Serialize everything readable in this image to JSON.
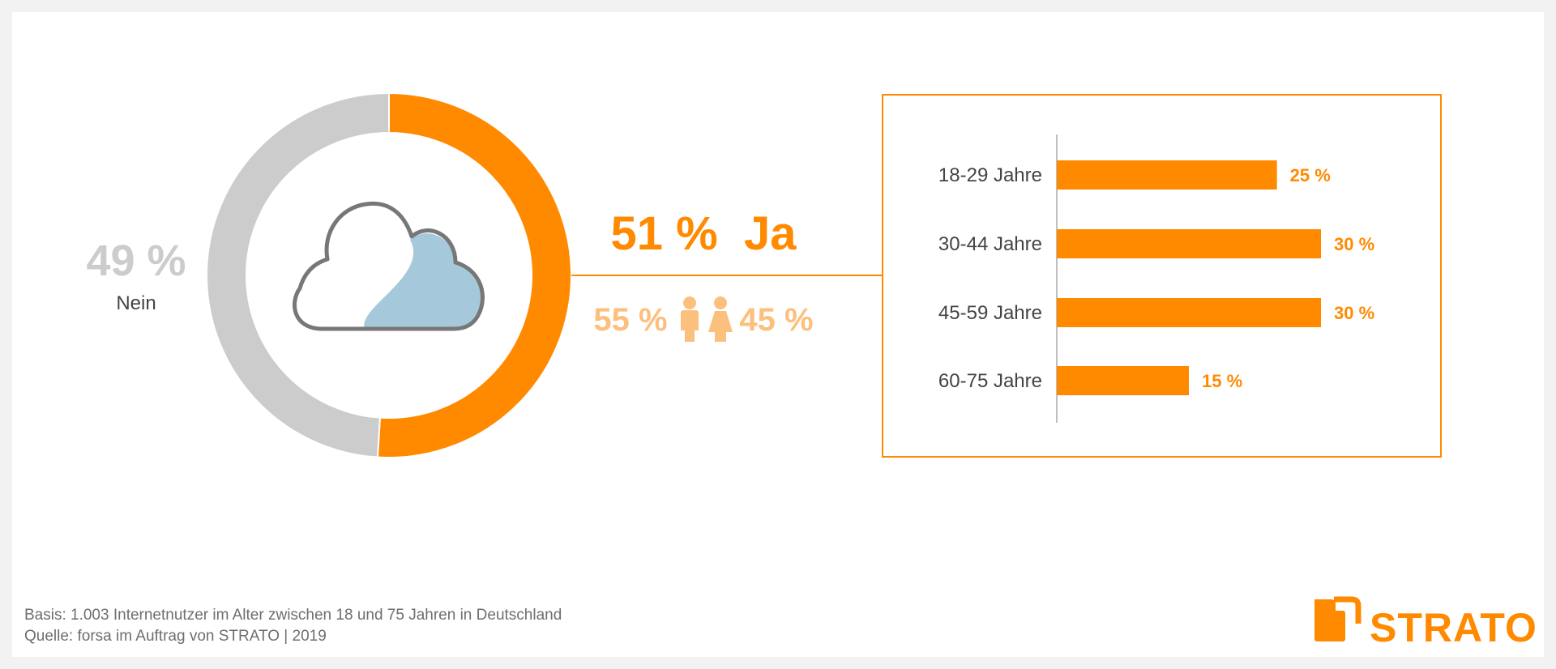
{
  "colors": {
    "accent": "#ff8a00",
    "accent_light": "#fcc07e",
    "neutral": "#cccccc",
    "cloud_fill": "#a5c8da",
    "cloud_stroke": "#777777"
  },
  "chart_data": [
    {
      "type": "pie",
      "style": "donut",
      "slices": [
        {
          "label": "Ja",
          "value": 51,
          "display": "51 %  Ja",
          "color": "#ff8a00"
        },
        {
          "label": "Nein",
          "value": 49,
          "display": "49 %",
          "color": "#cccccc"
        }
      ],
      "center_icon": "cloud-icon",
      "gender_split": {
        "male": {
          "value": 55,
          "display": "55 %",
          "icon": "male-person-icon"
        },
        "female": {
          "value": 45,
          "display": "45 %",
          "icon": "female-person-icon"
        }
      }
    },
    {
      "type": "bar",
      "orientation": "horizontal",
      "categories": [
        "18-29 Jahre",
        "30-44 Jahre",
        "45-59 Jahre",
        "60-75 Jahre"
      ],
      "values": [
        25,
        30,
        30,
        15
      ],
      "value_labels": [
        "25 %",
        "30 %",
        "30 %",
        "15 %"
      ],
      "xlim": [
        0,
        30
      ],
      "color": "#ff8a00"
    }
  ],
  "footer": {
    "basis": "Basis: 1.003 Internetnutzer im Alter zwischen 18 und 75 Jahren in Deutschland",
    "source": "Quelle: forsa im Auftrag von STRATO | 2019"
  },
  "logo": {
    "text": "STRATO"
  }
}
